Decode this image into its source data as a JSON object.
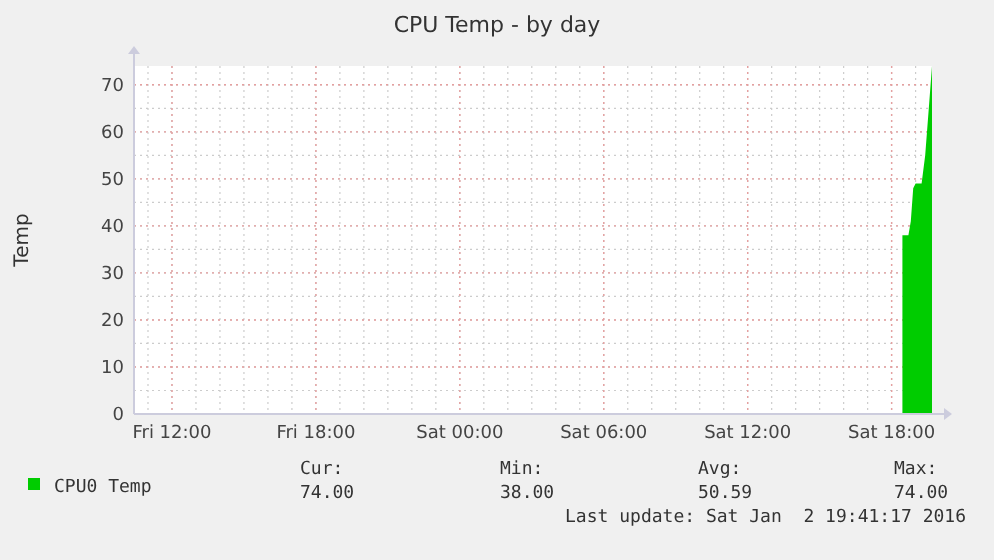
{
  "chart_data": {
    "type": "area",
    "title": "CPU Temp - by day",
    "ylabel": "Temp",
    "x": [
      "2016-01-02T18:27",
      "2016-01-02T18:42",
      "2016-01-02T18:48",
      "2016-01-02T18:54",
      "2016-01-02T19:00",
      "2016-01-02T19:15",
      "2016-01-02T19:24",
      "2016-01-02T19:33",
      "2016-01-02T19:41"
    ],
    "series": [
      {
        "name": "CPU0 Temp",
        "color": "#00cc00",
        "values": [
          38,
          38,
          41,
          48,
          49,
          49,
          55,
          65,
          74
        ]
      }
    ],
    "xlim": [
      "2016-01-01T10:25",
      "2016-01-02T19:41"
    ],
    "xticks": [
      {
        "value": "2016-01-01T12:00",
        "label": "Fri 12:00"
      },
      {
        "value": "2016-01-01T18:00",
        "label": "Fri 18:00"
      },
      {
        "value": "2016-01-02T00:00",
        "label": "Sat 00:00"
      },
      {
        "value": "2016-01-02T06:00",
        "label": "Sat 06:00"
      },
      {
        "value": "2016-01-02T12:00",
        "label": "Sat 12:00"
      },
      {
        "value": "2016-01-02T18:00",
        "label": "Sat 18:00"
      }
    ],
    "ylim": [
      0,
      74
    ],
    "yticks": [
      0,
      10,
      20,
      30,
      40,
      50,
      60,
      70
    ],
    "grid": true,
    "legend": "bottom",
    "annotations": [
      "Cur:",
      "Min:",
      "Avg:",
      "Max:",
      "74.00",
      "38.00",
      "50.59",
      "74.00",
      "Last update: Sat Jan  2 19:41:17 2016"
    ]
  }
}
